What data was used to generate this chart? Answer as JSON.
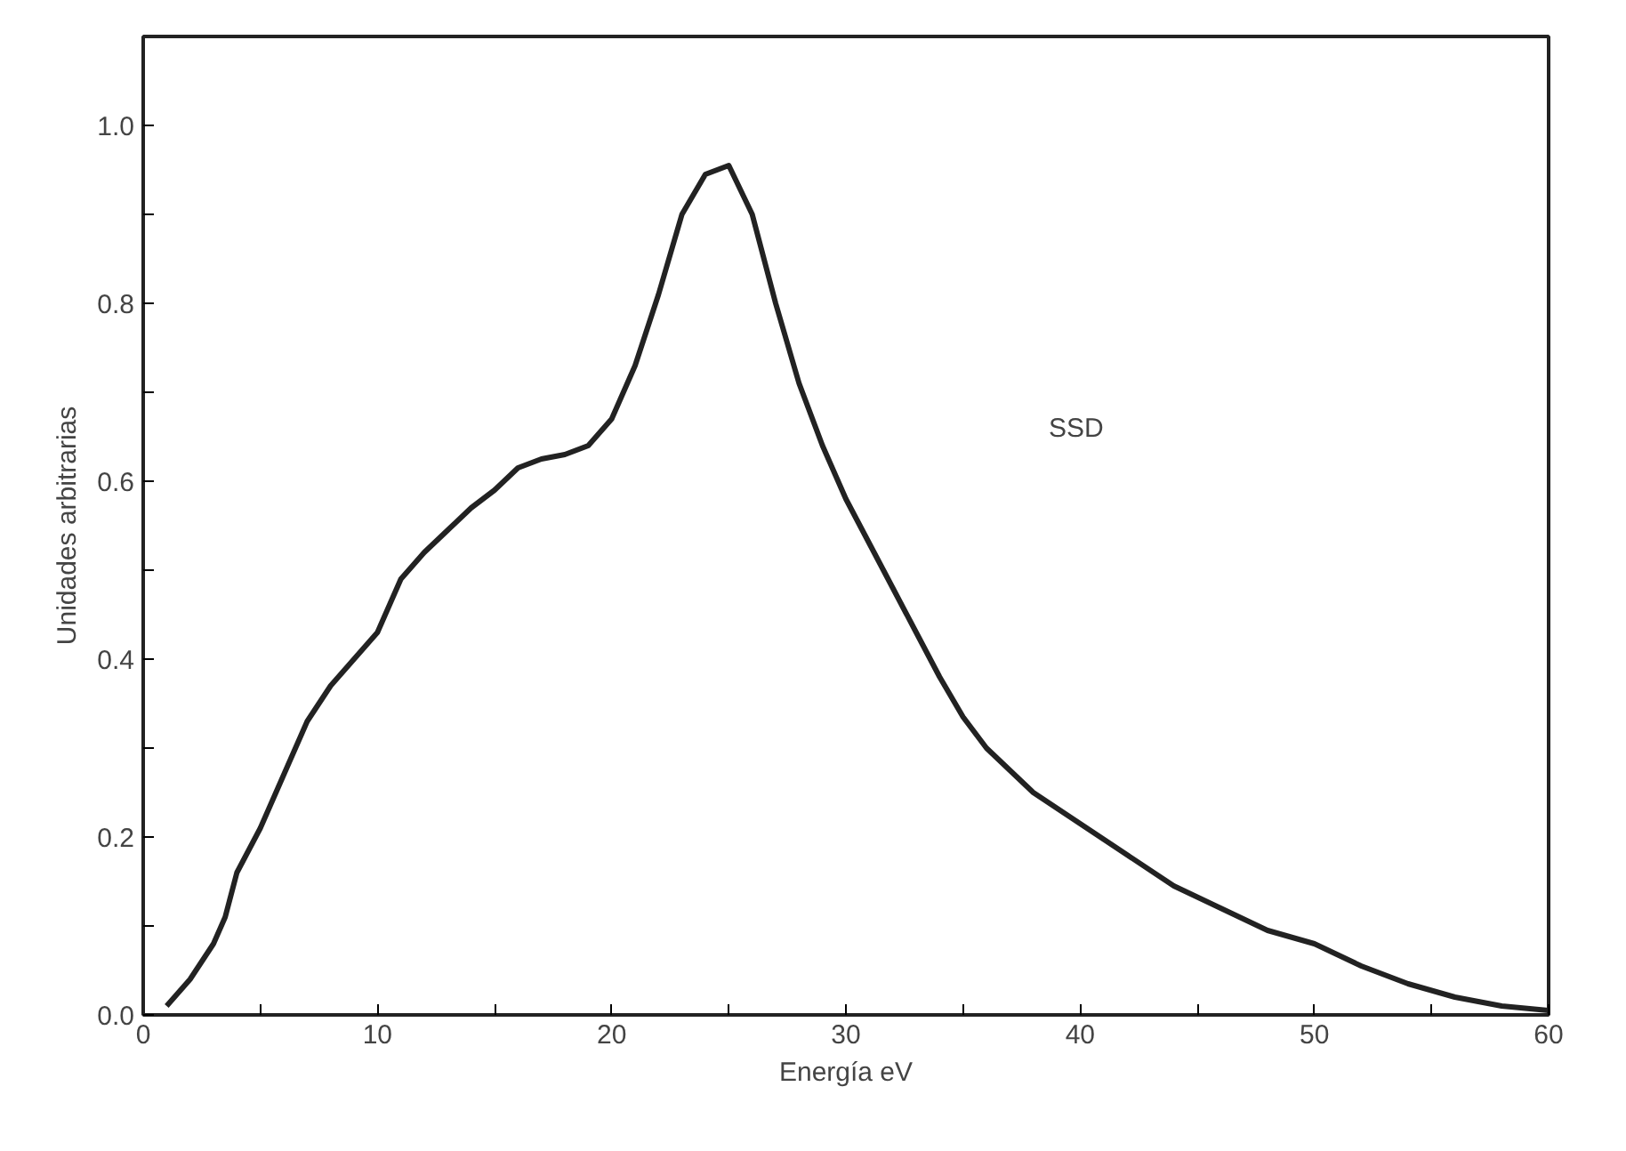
{
  "chart_data": {
    "type": "line",
    "xlabel": "Energía eV",
    "ylabel": "Unidades arbitrarias",
    "xlim": [
      0,
      60
    ],
    "ylim": [
      0,
      1.1
    ],
    "xticks": [
      0,
      {
        "value": 5,
        "label": null
      },
      10,
      {
        "value": 15,
        "label": null
      },
      20,
      {
        "value": 25,
        "label": null
      },
      30,
      {
        "value": 35,
        "label": null
      },
      40,
      {
        "value": 45,
        "label": null
      },
      50,
      {
        "value": 55,
        "label": null
      },
      60
    ],
    "yticks": [
      {
        "value": 0,
        "label": "0.0"
      },
      {
        "value": 0.1,
        "label": null
      },
      0.2,
      {
        "value": 0.3,
        "label": null
      },
      0.4,
      {
        "value": 0.5,
        "label": null
      },
      0.6,
      {
        "value": 0.7,
        "label": null
      },
      0.8,
      {
        "value": 0.9,
        "label": null
      },
      {
        "value": 1,
        "label": "1.0"
      }
    ],
    "grid": false,
    "marker": "none",
    "line_style": "solid",
    "annotations": [
      "SSD"
    ],
    "series": [
      {
        "color": "#222222",
        "x": [
          1,
          2,
          3,
          3.5,
          4,
          5,
          6,
          7,
          8,
          9,
          10,
          11,
          12,
          13,
          14,
          15,
          16,
          17,
          18,
          19,
          20,
          21,
          22,
          23,
          24,
          25,
          26,
          27,
          28,
          29,
          30,
          31,
          32,
          33,
          34,
          35,
          36,
          37,
          38,
          40,
          42,
          44,
          46,
          48,
          50,
          52,
          54,
          56,
          58,
          60
        ],
        "values": [
          0.01,
          0.04,
          0.08,
          0.11,
          0.16,
          0.21,
          0.27,
          0.33,
          0.37,
          0.4,
          0.43,
          0.49,
          0.52,
          0.545,
          0.57,
          0.59,
          0.615,
          0.625,
          0.63,
          0.64,
          0.67,
          0.73,
          0.81,
          0.9,
          0.945,
          0.955,
          0.9,
          0.8,
          0.71,
          0.64,
          0.58,
          0.53,
          0.48,
          0.43,
          0.38,
          0.335,
          0.3,
          0.275,
          0.25,
          0.215,
          0.18,
          0.145,
          0.12,
          0.095,
          0.08,
          0.055,
          0.035,
          0.02,
          0.01,
          0.005
        ]
      }
    ]
  }
}
